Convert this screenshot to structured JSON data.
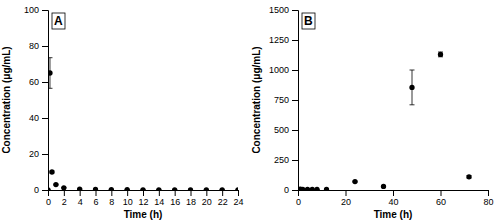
{
  "chart_data": [
    {
      "type": "scatter",
      "title": "A",
      "x": [
        0.0,
        0.25,
        0.5,
        1.0,
        2.0,
        4.0,
        6.0,
        8.0,
        10.0,
        12.0,
        14.0,
        16.0,
        18.0,
        20.0,
        22.0,
        24.0
      ],
      "values": [
        0.0,
        65.0,
        10.0,
        3.0,
        1.2,
        0.5,
        0.3,
        0.2,
        0.15,
        0.1,
        0.1,
        0.08,
        0.08,
        0.05,
        0.05,
        0.05
      ],
      "errors": [
        0.0,
        8.5,
        0.5,
        0.25,
        0.1,
        0.05,
        0.0,
        0.0,
        0.0,
        0.0,
        0.0,
        0.0,
        0.0,
        0.0,
        0.0,
        0.0
      ],
      "xlabel": "Time (h)",
      "ylabel": "Concentration (μg/mL)",
      "xlim": [
        0,
        24
      ],
      "ylim": [
        0,
        100
      ],
      "xticks": [
        0,
        2,
        4,
        6,
        8,
        10,
        12,
        14,
        16,
        18,
        20,
        22,
        24
      ],
      "yticks": [
        0,
        20,
        40,
        60,
        80,
        100
      ],
      "marker": "circle",
      "color": "black",
      "grid": false
    },
    {
      "type": "scatter",
      "title": "B",
      "x": [
        0.0,
        1.0,
        2.0,
        4.0,
        6.0,
        8.0,
        12.0,
        24.0,
        36.0,
        48.0,
        60.0,
        72.0
      ],
      "values": [
        5.0,
        8.0,
        6.0,
        5.0,
        5.0,
        4.0,
        5.0,
        70.0,
        30.0,
        855.0,
        1130.0,
        110.0
      ],
      "errors": [
        3.0,
        2.0,
        1.5,
        1.0,
        1.5,
        1.0,
        1.0,
        4.0,
        4.0,
        145.0,
        20.0,
        10.0
      ],
      "xlabel": "Time (h)",
      "ylabel": "Concentration (μg/mL)",
      "xlim": [
        0,
        80
      ],
      "ylim": [
        0,
        1500
      ],
      "xticks": [
        0,
        20,
        40,
        60,
        80
      ],
      "yticks": [
        0,
        250,
        500,
        750,
        1000,
        1250,
        1500
      ],
      "marker": "circle",
      "color": "black",
      "grid": false
    }
  ]
}
